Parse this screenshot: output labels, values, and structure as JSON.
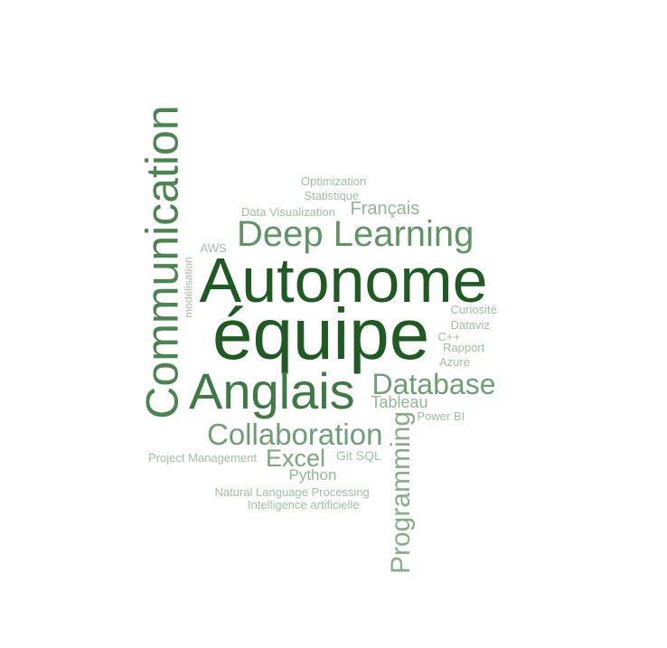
{
  "cloud": {
    "words": [
      {
        "text": "équipe",
        "color": "#1e5a22"
      },
      {
        "text": "Autonome",
        "color": "#1e5a22"
      },
      {
        "text": "Anglais",
        "color": "#3f7a45"
      },
      {
        "text": "Communication",
        "color": "#4a8550"
      },
      {
        "text": "Deep Learning",
        "color": "#5f9465"
      },
      {
        "text": "Database",
        "color": "#6e9e74"
      },
      {
        "text": "Collaboration",
        "color": "#6e9e74"
      },
      {
        "text": "Programming",
        "color": "#85ac88"
      },
      {
        "text": "Excel",
        "color": "#7aa57e"
      },
      {
        "text": "Tableau",
        "color": "#93b696"
      },
      {
        "text": "Python",
        "color": "#93b696"
      },
      {
        "text": "Français",
        "color": "#93b696"
      },
      {
        "text": "Git SQL",
        "color": "#a0bfa2"
      },
      {
        "text": "Power BI",
        "color": "#a0bfa2"
      },
      {
        "text": "Project Management",
        "color": "#a0bfa2"
      },
      {
        "text": "Natural Language Processing",
        "color": "#a0bfa2"
      },
      {
        "text": "Intelligence artificielle",
        "color": "#a0bfa2"
      },
      {
        "text": "Optimization",
        "color": "#a0bfa2"
      },
      {
        "text": "Statistique",
        "color": "#a0bfa2"
      },
      {
        "text": "Data Visualization",
        "color": "#a0bfa2"
      },
      {
        "text": "AWS",
        "color": "#a0bfa2"
      },
      {
        "text": "modélisation",
        "color": "#a0bfa2"
      },
      {
        "text": "Curiosité",
        "color": "#a0bfa2"
      },
      {
        "text": "Dataviz",
        "color": "#a0bfa2"
      },
      {
        "text": "C++",
        "color": "#a0bfa2"
      },
      {
        "text": "Rapport",
        "color": "#a0bfa2"
      },
      {
        "text": "Azure",
        "color": "#a0bfa2"
      }
    ]
  }
}
